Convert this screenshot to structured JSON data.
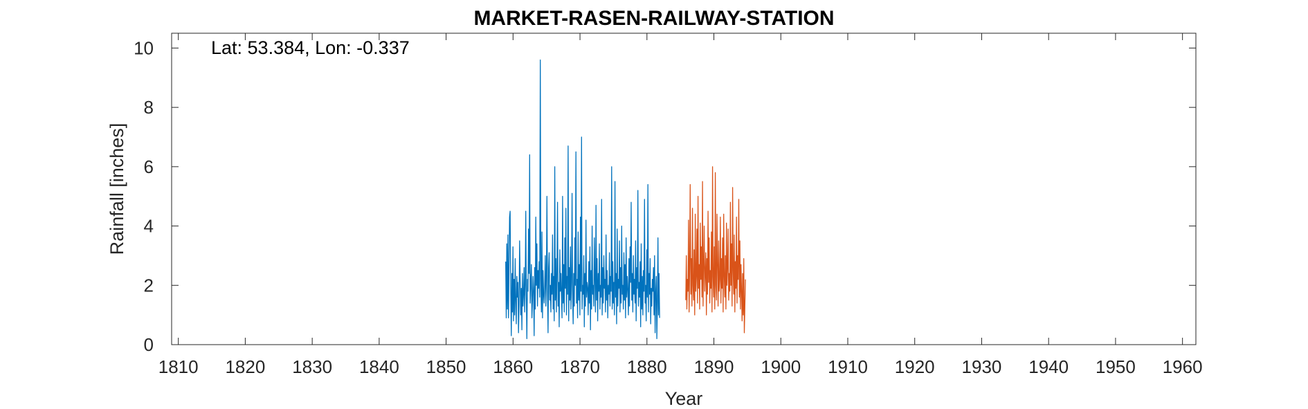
{
  "chart_data": {
    "type": "line",
    "title": "MARKET-RASEN-RAILWAY-STATION",
    "annotation": "Lat: 53.384, Lon: -0.337",
    "xlabel": "Year",
    "ylabel": "Rainfall [inches]",
    "xlim": [
      1809,
      1962
    ],
    "ylim": [
      0,
      10.5
    ],
    "xticks": [
      1810,
      1820,
      1830,
      1840,
      1850,
      1860,
      1870,
      1880,
      1890,
      1900,
      1910,
      1920,
      1930,
      1940,
      1950,
      1960
    ],
    "yticks": [
      0,
      2,
      4,
      6,
      8,
      10
    ],
    "grid": false,
    "series": [
      {
        "color": "#0072BD",
        "x_start": 1858.9,
        "x_step": 0.0833,
        "values": [
          2.8,
          0.9,
          3.4,
          1.2,
          3.7,
          0.9,
          2.6,
          4.3,
          4.5,
          2.0,
          0.3,
          2.4,
          1.1,
          3.3,
          0.8,
          2.2,
          1.0,
          2.9,
          1.5,
          0.7,
          2.3,
          1.6,
          2.1,
          0.4,
          1.3,
          3.5,
          2.2,
          1.0,
          1.9,
          0.5,
          2.4,
          1.3,
          1.7,
          2.6,
          1.1,
          2.0,
          4.5,
          1.6,
          0.2,
          2.2,
          1.8,
          3.9,
          2.4,
          6.4,
          1.4,
          2.0,
          2.7,
          0.9,
          1.5,
          2.3,
          1.8,
          0.3,
          2.6,
          1.2,
          4.3,
          2.0,
          3.4,
          1.3,
          2.5,
          1.9,
          2.8,
          1.6,
          9.6,
          2.2,
          1.1,
          3.8,
          0.9,
          2.5,
          1.7,
          1.4,
          2.0,
          3.0,
          1.3,
          2.2,
          5.0,
          1.8,
          0.4,
          2.6,
          3.1,
          1.5,
          2.0,
          1.1,
          2.4,
          1.7,
          3.7,
          1.2,
          2.3,
          0.8,
          6.0,
          1.5,
          2.9,
          1.1,
          2.5,
          4.8,
          1.3,
          2.1,
          0.6,
          3.2,
          1.8,
          2.4,
          1.6,
          0.9,
          5.0,
          1.4,
          2.7,
          1.1,
          3.6,
          1.9,
          4.6,
          1.0,
          2.3,
          1.7,
          6.7,
          0.8,
          2.6,
          1.5,
          3.3,
          1.2,
          2.1,
          5.1,
          1.6,
          0.7,
          2.4,
          1.3,
          3.6,
          2.0,
          6.5,
          1.4,
          2.2,
          0.9,
          3.8,
          1.5,
          2.7,
          1.0,
          4.3,
          1.8,
          7.0,
          1.2,
          2.0,
          1.7,
          3.0,
          0.6,
          2.4,
          1.3,
          4.2,
          1.6,
          2.1,
          1.9,
          1.0,
          2.8,
          1.4,
          3.3,
          0.5,
          2.5,
          1.2,
          4.0,
          1.7,
          2.0,
          1.3,
          3.6,
          2.2,
          1.1,
          4.7,
          1.5,
          2.9,
          0.8,
          2.4,
          1.8,
          3.4,
          1.2,
          2.0,
          1.6,
          4.9,
          1.0,
          2.6,
          1.4,
          3.0,
          1.9,
          2.2,
          1.1,
          3.7,
          1.5,
          2.5,
          0.9,
          2.0,
          1.7,
          3.1,
          1.3,
          2.3,
          1.8,
          6.0,
          1.2,
          2.8,
          1.4,
          2.1,
          1.0,
          5.5,
          1.6,
          2.4,
          0.7,
          3.9,
          1.3,
          2.2,
          1.9,
          3.5,
          1.1,
          2.6,
          1.4,
          4.0,
          1.7,
          2.0,
          1.2,
          3.1,
          1.5,
          2.7,
          0.9,
          3.6,
          1.6,
          2.3,
          1.8,
          1.0,
          2.9,
          1.3,
          3.3,
          2.1,
          4.8,
          1.5,
          2.4,
          1.1,
          3.0,
          1.7,
          2.2,
          1.4,
          3.5,
          0.8,
          2.6,
          1.9,
          5.2,
          1.3,
          2.1,
          1.6,
          2.8,
          0.6,
          3.4,
          1.2,
          2.3,
          1.0,
          2.5,
          1.8,
          4.9,
          1.4,
          2.0,
          0.8,
          3.2,
          1.6,
          5.4,
          1.1,
          2.4,
          1.7,
          2.9,
          0.7,
          1.9,
          1.3,
          2.2,
          1.8,
          2.6,
          1.0,
          3.0,
          0.4,
          1.7,
          2.3,
          0.2,
          1.4,
          3.6,
          1.0,
          2.4,
          0.9
        ]
      },
      {
        "color": "#D95319",
        "x_start": 1885.8,
        "x_step": 0.0833,
        "values": [
          1.5,
          3.0,
          1.2,
          2.2,
          1.8,
          4.2,
          1.1,
          2.6,
          5.4,
          1.7,
          2.9,
          1.3,
          4.6,
          2.0,
          1.5,
          3.2,
          1.0,
          4.4,
          1.8,
          2.3,
          3.9,
          1.4,
          5.0,
          1.9,
          2.7,
          1.2,
          4.1,
          2.2,
          3.3,
          1.6,
          5.5,
          1.3,
          2.6,
          4.0,
          1.8,
          2.4,
          3.1,
          1.0,
          2.9,
          1.7,
          4.5,
          2.1,
          3.6,
          1.4,
          2.5,
          1.9,
          3.8,
          1.1,
          6.0,
          2.3,
          1.6,
          3.3,
          1.2,
          5.8,
          2.0,
          1.5,
          4.4,
          2.7,
          1.3,
          3.5,
          1.8,
          2.2,
          4.3,
          1.4,
          2.9,
          1.9,
          3.6,
          1.1,
          4.4,
          2.3,
          1.6,
          3.0,
          1.2,
          4.1,
          2.0,
          2.6,
          3.9,
          1.5,
          2.4,
          1.8,
          4.8,
          2.0,
          3.4,
          1.3,
          5.3,
          2.5,
          1.7,
          3.7,
          1.1,
          2.8,
          1.9,
          4.3,
          1.4,
          3.0,
          2.2,
          4.9,
          1.6,
          3.5,
          1.2,
          2.7,
          1.8,
          0.8,
          2.4,
          1.0,
          2.9,
          0.4,
          1.3,
          2.2
        ]
      }
    ]
  }
}
